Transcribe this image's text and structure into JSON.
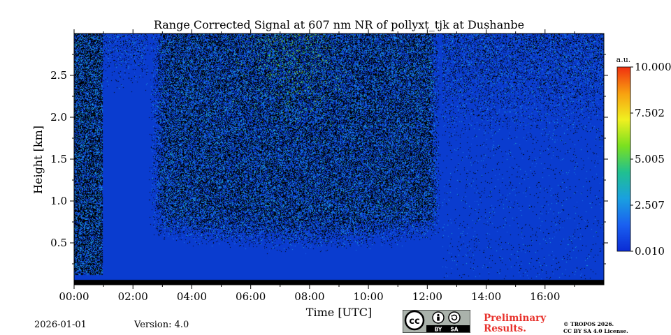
{
  "chart_data": {
    "type": "heatmap",
    "title": "Range Corrected Signal at 607 nm NR of pollyxt_tjk at Dushanbe",
    "xlabel": "Time [UTC]",
    "ylabel": "Height [km]",
    "xlim_hours": [
      0,
      18
    ],
    "ylim_km": [
      0,
      3.0
    ],
    "x_ticks": [
      {
        "value": 0,
        "label": "00:00"
      },
      {
        "value": 2,
        "label": "02:00"
      },
      {
        "value": 4,
        "label": "04:00"
      },
      {
        "value": 6,
        "label": "06:00"
      },
      {
        "value": 8,
        "label": "08:00"
      },
      {
        "value": 10,
        "label": "10:00"
      },
      {
        "value": 12,
        "label": "12:00"
      },
      {
        "value": 14,
        "label": "14:00"
      },
      {
        "value": 16,
        "label": "16:00"
      }
    ],
    "y_ticks": [
      {
        "value": 0.5,
        "label": "0.5"
      },
      {
        "value": 1.0,
        "label": "1.0"
      },
      {
        "value": 1.5,
        "label": "1.5"
      },
      {
        "value": 2.0,
        "label": "2.0"
      },
      {
        "value": 2.5,
        "label": "2.5"
      }
    ],
    "colorbar": {
      "unit": "a.u.",
      "range": [
        0.01,
        10.0
      ],
      "ticks": [
        {
          "value": 0.01,
          "label": "0.010"
        },
        {
          "value": 2.507,
          "label": "2.507"
        },
        {
          "value": 5.005,
          "label": "5.005"
        },
        {
          "value": 7.502,
          "label": "7.502"
        },
        {
          "value": 10.0,
          "label": "10.000"
        }
      ],
      "colormap": [
        "#0a2bd4",
        "#1a60f0",
        "#1aa0e0",
        "#20c090",
        "#7ae020",
        "#f0f020",
        "#f8a010",
        "#f03010"
      ]
    },
    "background_color": "#0a3ccf",
    "no_data_color": "#000000"
  },
  "footer": {
    "date": "2026-01-01",
    "version": "Version: 4.0",
    "preliminary_line1": "Preliminary",
    "preliminary_line2": "Results.",
    "copyright_line1": "© TROPOS 2026.",
    "copyright_line2": "CC BY SA 4.0 License.",
    "license_badge": {
      "cc": "cc",
      "by": "BY",
      "sa": "SA"
    }
  },
  "colors": {
    "accent_red": "#e8322c"
  }
}
